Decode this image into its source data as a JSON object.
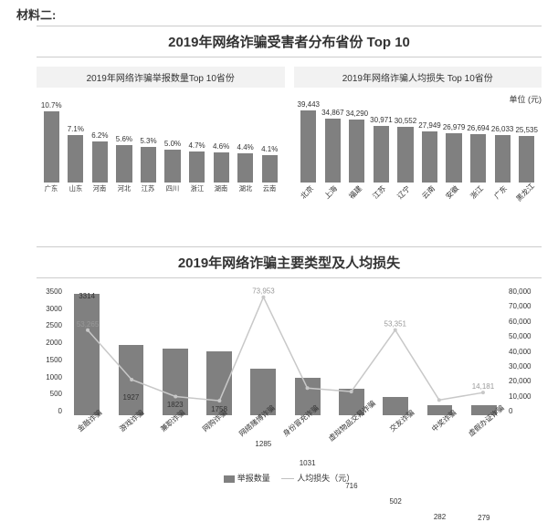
{
  "page_label": "材料二:",
  "section1": {
    "title": "2019年网络诈骗受害者分布省份 Top 10",
    "left_chart": {
      "type": "bar",
      "subtitle": "2019年网络诈骗举报数量Top 10省份",
      "categories": [
        "广东",
        "山东",
        "河南",
        "河北",
        "江苏",
        "四川",
        "浙江",
        "湖南",
        "湖北",
        "云南"
      ],
      "values_display": [
        "10.7%",
        "7.1%",
        "6.2%",
        "5.6%",
        "5.3%",
        "5.0%",
        "4.7%",
        "4.6%",
        "4.4%",
        "4.1%"
      ],
      "values": [
        10.7,
        7.1,
        6.2,
        5.6,
        5.3,
        5.0,
        4.7,
        4.6,
        4.4,
        4.1
      ],
      "ymax": 11,
      "bar_color": "#808080",
      "label_fontsize": 8
    },
    "right_chart": {
      "type": "bar",
      "subtitle": "2019年网络诈骗人均损失 Top 10省份",
      "unit": "单位 (元)",
      "categories": [
        "北京",
        "上海",
        "福建",
        "江苏",
        "辽宁",
        "云南",
        "安徽",
        "浙江",
        "广东",
        "黑龙江"
      ],
      "values_display": [
        "39,443",
        "34,867",
        "34,290",
        "30,971",
        "30,552",
        "27,949",
        "26,979",
        "26,694",
        "26,033",
        "25,535"
      ],
      "values": [
        39443,
        34867,
        34290,
        30971,
        30552,
        27949,
        26979,
        26694,
        26033,
        25535
      ],
      "ymax": 40000,
      "bar_color": "#808080",
      "label_fontsize": 8,
      "label_rotate": true
    }
  },
  "section2": {
    "title": "2019年网络诈骗主要类型及人均损失",
    "combo": {
      "type": "bar+line",
      "categories": [
        "金融诈骗",
        "游戏诈骗",
        "兼职诈骗",
        "网购诈骗",
        "网络赌博诈骗",
        "身份冒充诈骗",
        "虚拟物品交易诈骗",
        "交友诈骗",
        "中奖诈骗",
        "虚假办证诈骗"
      ],
      "bar_values": [
        3314,
        1927,
        1823,
        1758,
        1285,
        1031,
        716,
        502,
        282,
        279
      ],
      "bar_color": "#808080",
      "line_values": [
        53265,
        22304,
        11734,
        9085,
        73953,
        16988,
        14812,
        53351,
        9530,
        14181
      ],
      "line_values_display": [
        "53,265",
        "",
        "",
        "",
        "73,953",
        "",
        "",
        "53,351",
        "",
        "14,181"
      ],
      "line_color": "#c8c8c8",
      "y_left": {
        "ticks": [
          3500,
          3000,
          2500,
          2000,
          1500,
          1000,
          500,
          0
        ],
        "max": 3500
      },
      "y_right": {
        "ticks": [
          "80,000",
          "70,000",
          "60,000",
          "50,000",
          "40,000",
          "30,000",
          "20,000",
          "10,000",
          "0"
        ],
        "max": 80000
      },
      "legend": {
        "bar": "举报数量",
        "line": "人均损失（元）"
      }
    }
  }
}
